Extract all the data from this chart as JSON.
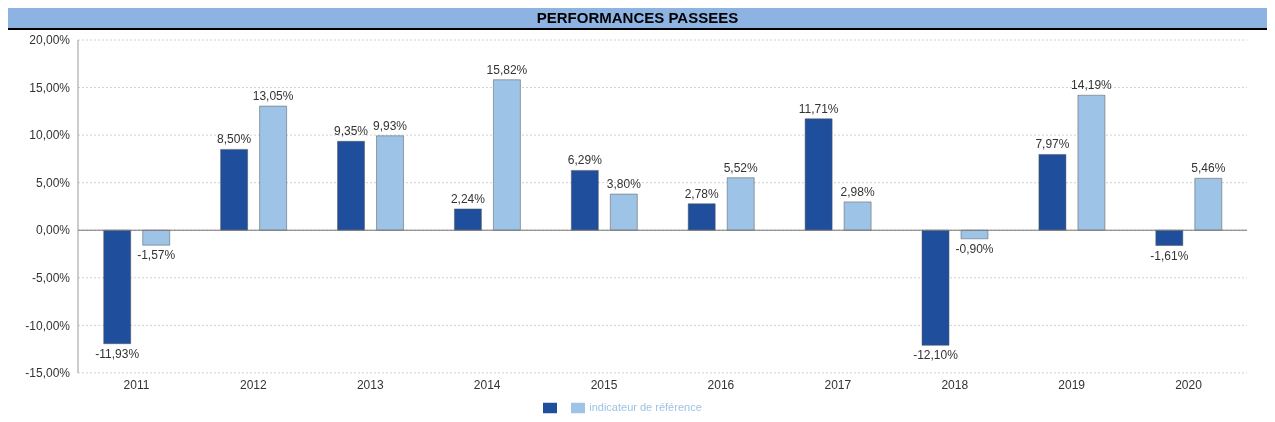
{
  "chart_data": {
    "type": "bar",
    "title": "PERFORMANCES PASSEES",
    "categories": [
      "2011",
      "2012",
      "2013",
      "2014",
      "2015",
      "2016",
      "2017",
      "2018",
      "2019",
      "2020"
    ],
    "series": [
      {
        "color": "#1f4e9c",
        "values": [
          -11.93,
          8.5,
          9.35,
          2.24,
          6.29,
          2.78,
          11.71,
          -12.1,
          7.97,
          -1.61
        ],
        "value_labels": [
          "-11,93%",
          "8,50%",
          "9,35%",
          "2,24%",
          "6,29%",
          "2,78%",
          "11,71%",
          "-12,10%",
          "7,97%",
          "-1,61%"
        ]
      },
      {
        "name": "indicateur de référence",
        "color": "#9dc3e6",
        "values": [
          -1.57,
          13.05,
          9.93,
          15.82,
          3.8,
          5.52,
          2.98,
          -0.9,
          14.19,
          5.46
        ],
        "value_labels": [
          "-1,57%",
          "13,05%",
          "9,93%",
          "15,82%",
          "3,80%",
          "5,52%",
          "2,98%",
          "-0,90%",
          "14,19%",
          "5,46%"
        ]
      }
    ],
    "ylim": [
      -15,
      20
    ],
    "yticks": [
      {
        "value": -15,
        "label": "-15,00%"
      },
      {
        "value": -10,
        "label": "-10,00%"
      },
      {
        "value": -5,
        "label": "-5,00%"
      },
      {
        "value": 0,
        "label": "0,00%"
      },
      {
        "value": 5,
        "label": "5,00%"
      },
      {
        "value": 10,
        "label": "10,00%"
      },
      {
        "value": 15,
        "label": "15,00%"
      },
      {
        "value": 20,
        "label": "20,00%"
      }
    ],
    "grid": "y",
    "legend": "bottom"
  }
}
